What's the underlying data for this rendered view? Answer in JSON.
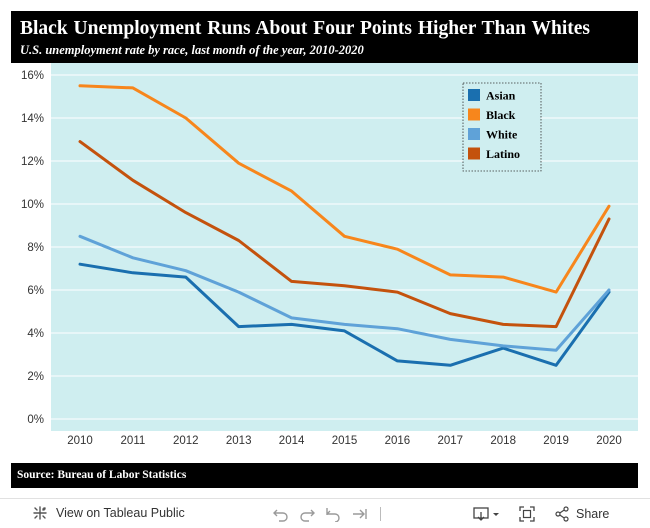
{
  "header": {
    "title": "Black Unemployment Runs About Four Points Higher Than Whites",
    "subtitle": "U.S. unemployment rate by race, last month of the year, 2010-2020"
  },
  "footer": {
    "source": "Source: Bureau of Labor Statistics"
  },
  "toolbar": {
    "view_label": "View on Tableau Public",
    "share_label": "Share",
    "icons": [
      "tableau-logo-icon",
      "undo-icon",
      "redo-icon",
      "revert-icon",
      "forward-icon",
      "download-icon",
      "fullscreen-icon",
      "share-icon"
    ]
  },
  "chart_data": {
    "type": "line",
    "x": [
      2010,
      2011,
      2012,
      2013,
      2014,
      2015,
      2016,
      2017,
      2018,
      2019,
      2020
    ],
    "ylim": [
      0,
      16
    ],
    "yticks": [
      "0%",
      "2%",
      "4%",
      "6%",
      "8%",
      "10%",
      "12%",
      "14%",
      "16%"
    ],
    "ytick_values": [
      0,
      2,
      4,
      6,
      8,
      10,
      12,
      14,
      16
    ],
    "xticks": [
      "2010",
      "2011",
      "2012",
      "2013",
      "2014",
      "2015",
      "2016",
      "2017",
      "2018",
      "2019",
      "2020"
    ],
    "grid": true,
    "legend_position": "top-right",
    "series": [
      {
        "name": "Asian",
        "color": "#1a6faf",
        "values": [
          7.2,
          6.8,
          6.6,
          4.3,
          4.4,
          4.1,
          2.7,
          2.5,
          3.3,
          2.5,
          5.9
        ]
      },
      {
        "name": "Black",
        "color": "#f7861c",
        "values": [
          15.5,
          15.4,
          14.0,
          11.9,
          10.6,
          8.5,
          7.9,
          6.7,
          6.6,
          5.9,
          9.9
        ]
      },
      {
        "name": "White",
        "color": "#5fa2d8",
        "values": [
          8.5,
          7.5,
          6.9,
          5.9,
          4.7,
          4.4,
          4.2,
          3.7,
          3.4,
          3.2,
          6.0
        ]
      },
      {
        "name": "Latino",
        "color": "#c4520d",
        "values": [
          12.9,
          11.1,
          9.6,
          8.3,
          6.4,
          6.2,
          5.9,
          4.9,
          4.4,
          4.3,
          9.3
        ]
      }
    ]
  }
}
